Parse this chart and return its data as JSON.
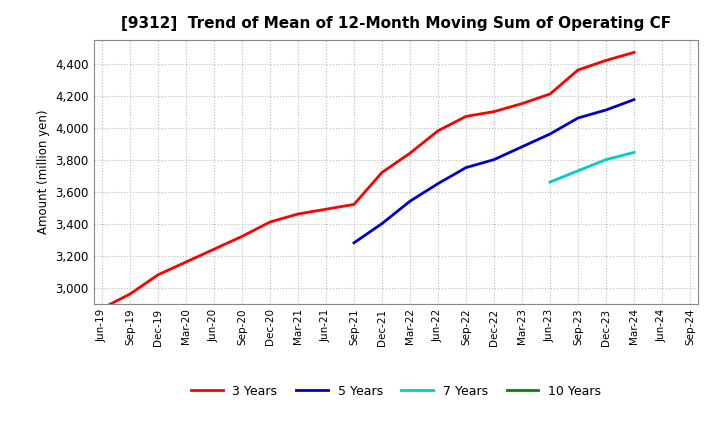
{
  "title": "[9312]  Trend of Mean of 12-Month Moving Sum of Operating CF",
  "ylabel": "Amount (million yen)",
  "ylim": [
    2900,
    4550
  ],
  "yticks": [
    3000,
    3200,
    3400,
    3600,
    3800,
    4000,
    4200,
    4400
  ],
  "background_color": "#ffffff",
  "grid_color": "#bbbbbb",
  "series": {
    "3 Years": {
      "color": "#ff0000",
      "x": [
        "Jun-19",
        "Sep-19",
        "Dec-19",
        "Mar-20",
        "Jun-20",
        "Sep-20",
        "Dec-20",
        "Mar-21",
        "Jun-21",
        "Sep-21",
        "Dec-21",
        "Mar-22",
        "Jun-22",
        "Sep-22",
        "Dec-22",
        "Mar-23",
        "Jun-23",
        "Sep-23",
        "Dec-23",
        "Mar-24"
      ],
      "y": [
        2870,
        2960,
        3080,
        3160,
        3240,
        3320,
        3410,
        3460,
        3490,
        3520,
        3720,
        3840,
        3980,
        4070,
        4100,
        4150,
        4210,
        4360,
        4420,
        4470
      ]
    },
    "5 Years": {
      "color": "#0000cc",
      "x": [
        "Sep-21",
        "Dec-21",
        "Mar-22",
        "Jun-22",
        "Sep-22",
        "Dec-22",
        "Mar-23",
        "Jun-23",
        "Sep-23",
        "Dec-23",
        "Mar-24"
      ],
      "y": [
        3280,
        3400,
        3540,
        3650,
        3750,
        3800,
        3880,
        3960,
        4060,
        4110,
        4175
      ]
    },
    "7 Years": {
      "color": "#00cccc",
      "x": [
        "Jun-23",
        "Sep-23",
        "Dec-23",
        "Mar-24"
      ],
      "y": [
        3660,
        3730,
        3800,
        3845
      ]
    },
    "10 Years": {
      "color": "#008800",
      "x": [],
      "y": []
    }
  },
  "x_labels": [
    "Jun-19",
    "Sep-19",
    "Dec-19",
    "Mar-20",
    "Jun-20",
    "Sep-20",
    "Dec-20",
    "Mar-21",
    "Jun-21",
    "Sep-21",
    "Dec-21",
    "Mar-22",
    "Jun-22",
    "Sep-22",
    "Dec-22",
    "Mar-23",
    "Jun-23",
    "Sep-23",
    "Dec-23",
    "Mar-24",
    "Jun-24",
    "Sep-24"
  ],
  "legend_labels": [
    "3 Years",
    "5 Years",
    "7 Years",
    "10 Years"
  ]
}
